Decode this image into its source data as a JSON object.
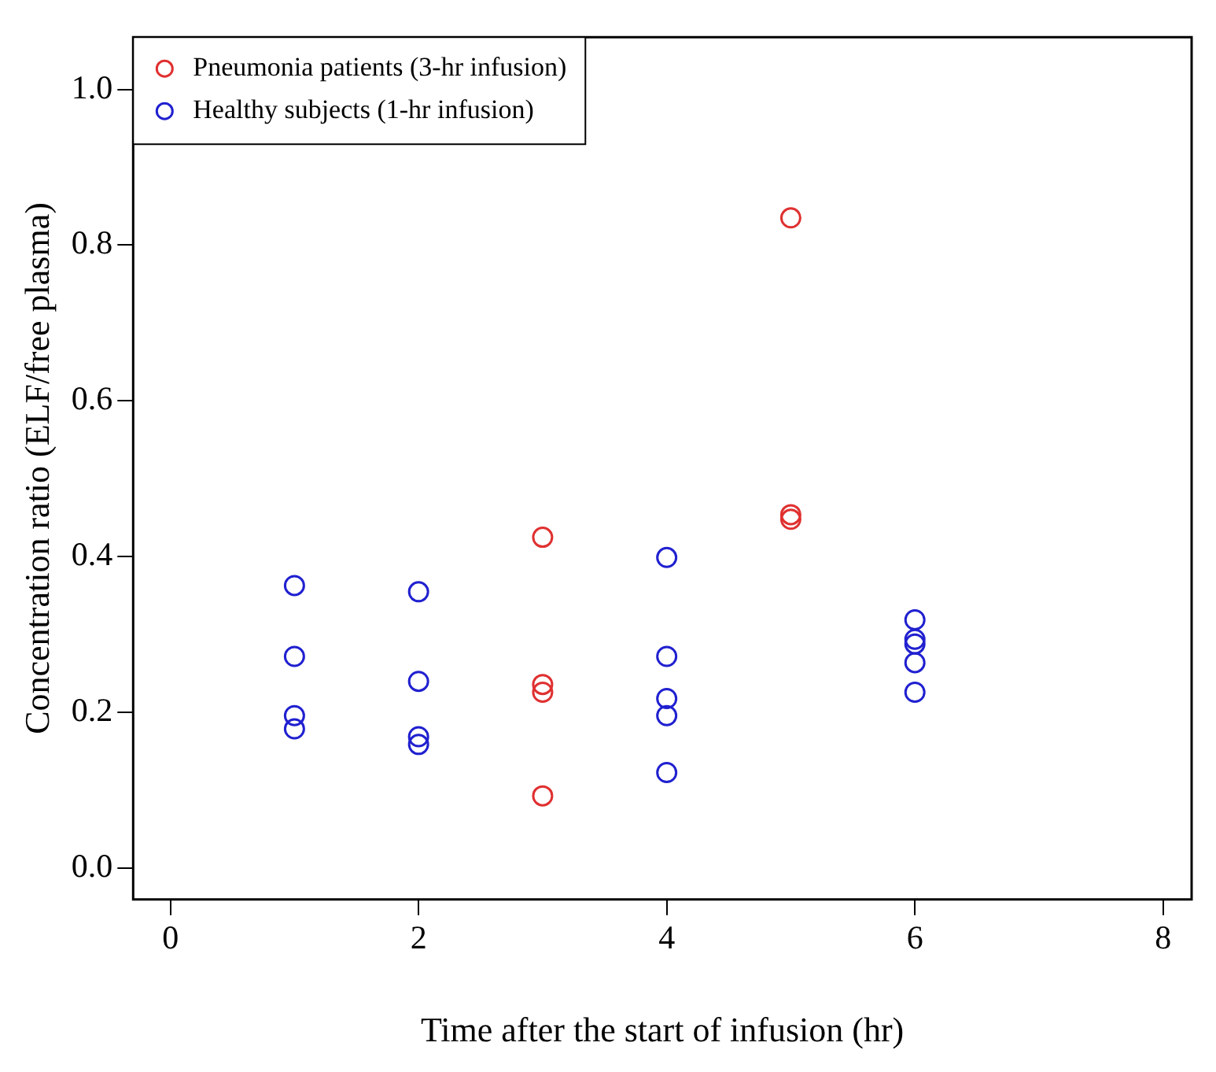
{
  "chart_data": {
    "type": "scatter",
    "xlabel": "Time after the start of infusion (hr)",
    "ylabel": "Concentration ratio (ELF/free plasma)",
    "xlim": [
      -0.3,
      8.23
    ],
    "xticks": [
      0,
      2,
      4,
      6,
      8
    ],
    "ylim": [
      -0.04,
      1.067
    ],
    "yticks": [
      {
        "value": 0,
        "label": "0.0"
      },
      {
        "value": 0.2,
        "label": "0.2"
      },
      {
        "value": 0.4,
        "label": "0.4"
      },
      {
        "value": 0.6,
        "label": "0.6"
      },
      {
        "value": 0.8,
        "label": "0.8"
      },
      {
        "value": 1.0,
        "label": "1.0"
      }
    ],
    "grid": false,
    "legend": "top left",
    "marker": "circle",
    "series": [
      {
        "name": "Pneumonia patients (3-hr infusion)",
        "color": "#e03030",
        "x": [
          3,
          3,
          3,
          3,
          5,
          5,
          5
        ],
        "values": [
          0.425,
          0.236,
          0.226,
          0.093,
          0.835,
          0.454,
          0.448
        ]
      },
      {
        "name": "Healthy subjects (1-hr infusion)",
        "color": "#2020d0",
        "x": [
          1,
          1,
          1,
          1,
          2,
          2,
          2,
          2,
          4,
          4,
          4,
          4,
          4,
          6,
          6,
          6,
          6,
          6
        ],
        "values": [
          0.363,
          0.272,
          0.196,
          0.179,
          0.355,
          0.24,
          0.169,
          0.159,
          0.399,
          0.272,
          0.218,
          0.196,
          0.123,
          0.319,
          0.294,
          0.288,
          0.264,
          0.226
        ]
      }
    ]
  }
}
